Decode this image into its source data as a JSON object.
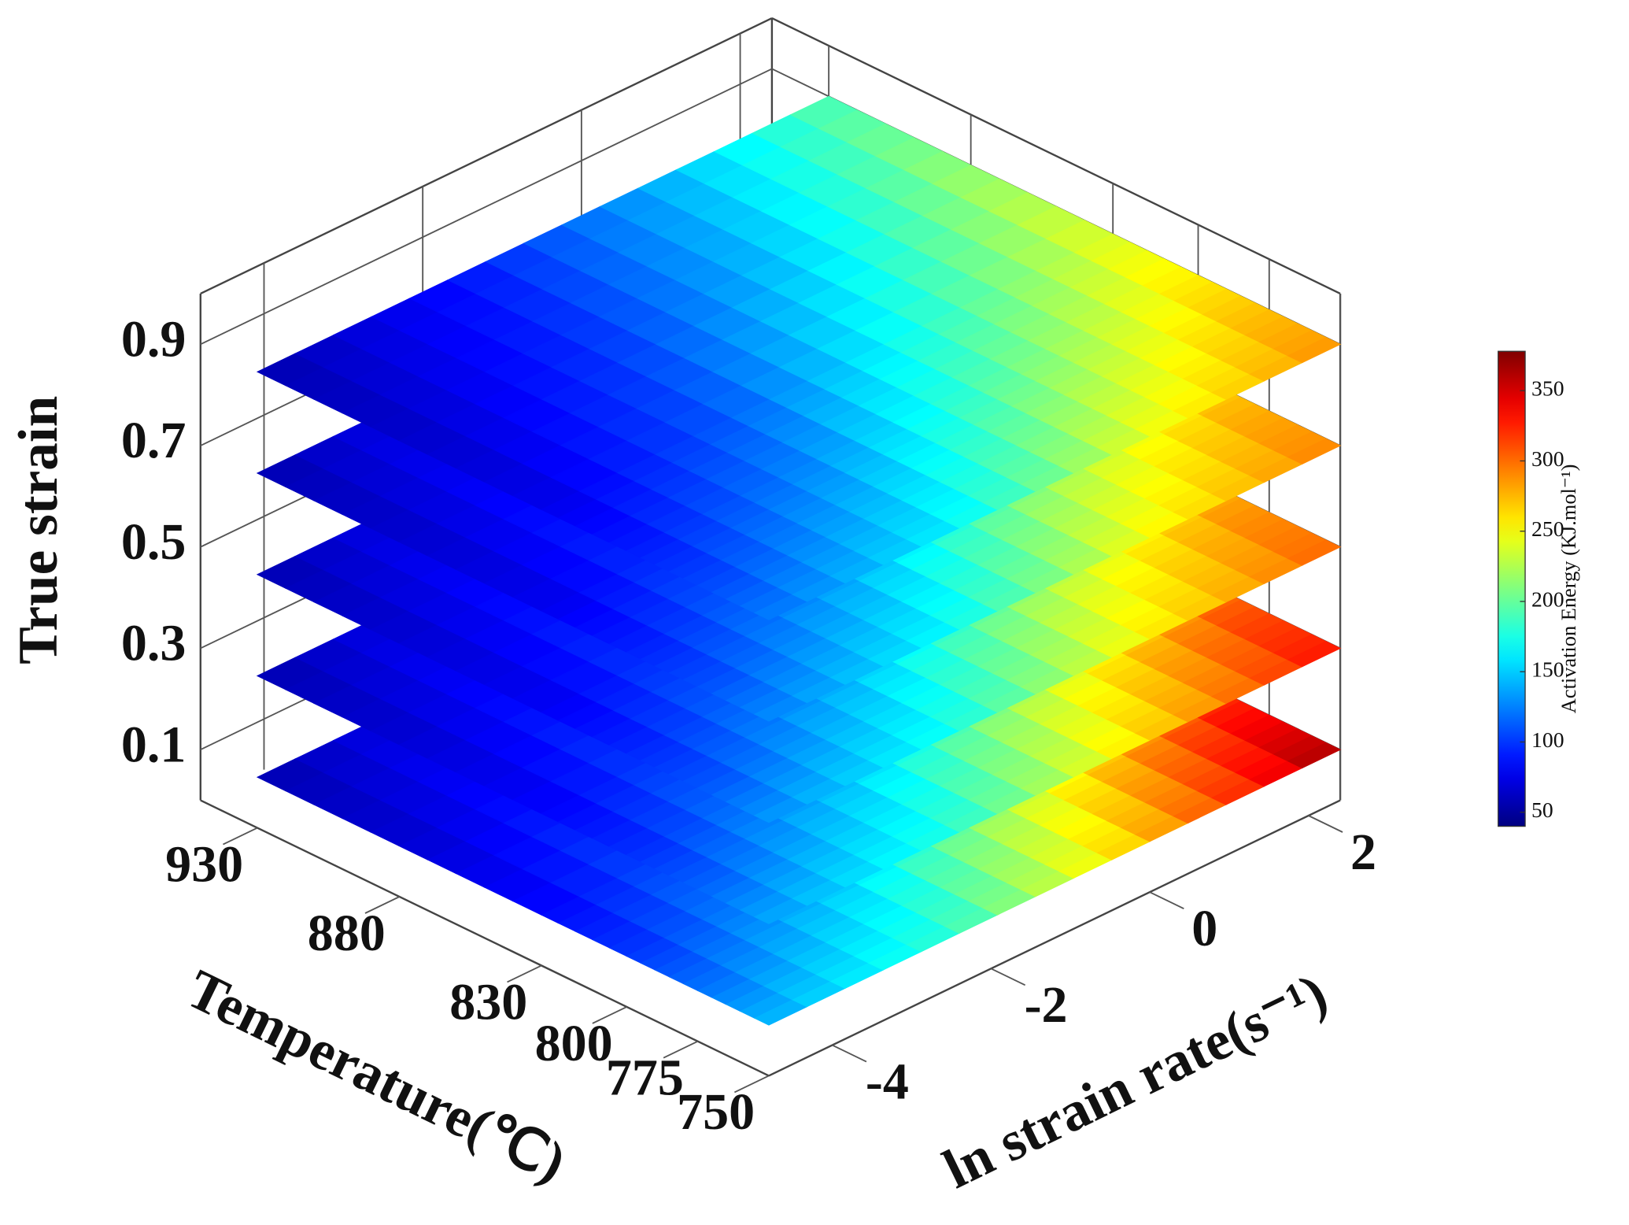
{
  "chart_data": {
    "type": "surface3d",
    "z_label": "True strain",
    "x_label": "Temperature(℃)",
    "y_label": "ln strain rate(s⁻¹)",
    "colorbar_label": "Activation Energy (KJ.mol⁻¹)",
    "xlim": [
      950,
      750
    ],
    "xticks": [
      930,
      880,
      830,
      800,
      775,
      750
    ],
    "ylim": [
      -4.8,
      2.4
    ],
    "yticks": [
      -4,
      -2,
      0,
      2
    ],
    "zlim": [
      0,
      1
    ],
    "zticks": [
      0.1,
      0.3,
      0.5,
      0.7,
      0.9
    ],
    "clim": [
      40,
      378
    ],
    "cticks": [
      50,
      100,
      150,
      200,
      250,
      300,
      350
    ],
    "colormap": "jet",
    "grid": true,
    "temperatures": [
      930,
      880,
      830,
      800,
      775,
      750
    ],
    "strain_rates": [
      -4.8,
      -2.4,
      0,
      2.4
    ],
    "slices": [
      {
        "strain": 0.1,
        "values": [
          [
            55,
            85,
            130,
            200
          ],
          [
            65,
            100,
            160,
            250
          ],
          [
            80,
            125,
            200,
            290
          ],
          [
            95,
            145,
            230,
            320
          ],
          [
            115,
            165,
            255,
            345
          ],
          [
            140,
            185,
            275,
            370
          ]
        ]
      },
      {
        "strain": 0.3,
        "values": [
          [
            55,
            85,
            130,
            195
          ],
          [
            65,
            100,
            155,
            240
          ],
          [
            78,
            120,
            195,
            275
          ],
          [
            92,
            140,
            220,
            300
          ],
          [
            110,
            160,
            245,
            320
          ],
          [
            135,
            180,
            265,
            335
          ]
        ]
      },
      {
        "strain": 0.5,
        "values": [
          [
            55,
            85,
            130,
            190
          ],
          [
            65,
            100,
            150,
            230
          ],
          [
            75,
            118,
            185,
            260
          ],
          [
            90,
            135,
            210,
            280
          ],
          [
            105,
            155,
            235,
            295
          ],
          [
            130,
            175,
            255,
            305
          ]
        ]
      },
      {
        "strain": 0.7,
        "values": [
          [
            55,
            85,
            130,
            190
          ],
          [
            63,
            98,
            148,
            225
          ],
          [
            73,
            115,
            180,
            250
          ],
          [
            88,
            132,
            205,
            270
          ],
          [
            103,
            150,
            228,
            285
          ],
          [
            125,
            170,
            250,
            295
          ]
        ]
      },
      {
        "strain": 0.9,
        "values": [
          [
            55,
            85,
            135,
            195
          ],
          [
            62,
            97,
            148,
            220
          ],
          [
            72,
            113,
            178,
            245
          ],
          [
            86,
            130,
            200,
            262
          ],
          [
            100,
            148,
            222,
            278
          ],
          [
            120,
            165,
            245,
            290
          ]
        ]
      }
    ]
  }
}
